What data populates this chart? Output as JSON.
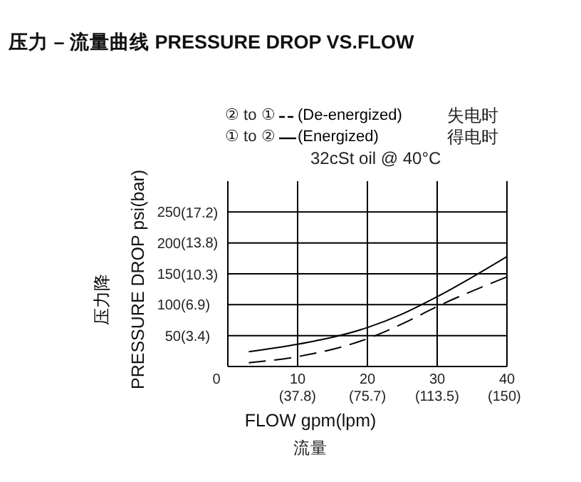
{
  "chart_data": {
    "type": "line",
    "title": "压力 – 流量曲线 PRESSURE DROP VS.FLOW",
    "xlabel": "FLOW gpm(lpm)",
    "ylabel": "PRESSURE DROP psi(bar)",
    "annotations": [
      "压力降",
      "流量",
      "失电时",
      "得电时",
      "32cSt oil @ 40°C",
      "② to ①",
      "① to ②"
    ],
    "series": [
      {
        "name": "(De-energized)",
        "color": "#000000",
        "line_style": "dashed",
        "x": [
          3,
          10,
          20,
          25,
          30,
          40
        ],
        "values": [
          6,
          16,
          45,
          69,
          97,
          145
        ]
      },
      {
        "name": "(Energized)",
        "color": "#000000",
        "line_style": "solid",
        "x": [
          3,
          10,
          20,
          25,
          30,
          40
        ],
        "values": [
          24,
          36,
          63,
          85,
          113,
          178
        ]
      }
    ],
    "xlim": [
      0,
      40
    ],
    "xticks": [
      0,
      10,
      20,
      30,
      40
    ],
    "x2lim": [
      0,
      151.4
    ],
    "x2ticks": [
      {
        "value": 37.8,
        "label": "(37.8)"
      },
      {
        "value": 75.7,
        "label": "(75.7)"
      },
      {
        "value": 113.5,
        "label": "(113.5)"
      },
      {
        "value": 150,
        "label": "(150)"
      }
    ],
    "ylim": [
      0,
      300
    ],
    "yticks": [
      50,
      100,
      150,
      200,
      250
    ],
    "y2lim": [
      0,
      20.68
    ],
    "y2ticks": [
      {
        "value": 3.4,
        "label": "(3.4)"
      },
      {
        "value": 6.9,
        "label": "(6.9)"
      },
      {
        "value": 10.3,
        "label": "(10.3)"
      },
      {
        "value": 13.8,
        "label": "(13.8)"
      },
      {
        "value": 17.2,
        "label": "(17.2)"
      }
    ],
    "grid": true,
    "legend": "top",
    "marker": "none"
  }
}
